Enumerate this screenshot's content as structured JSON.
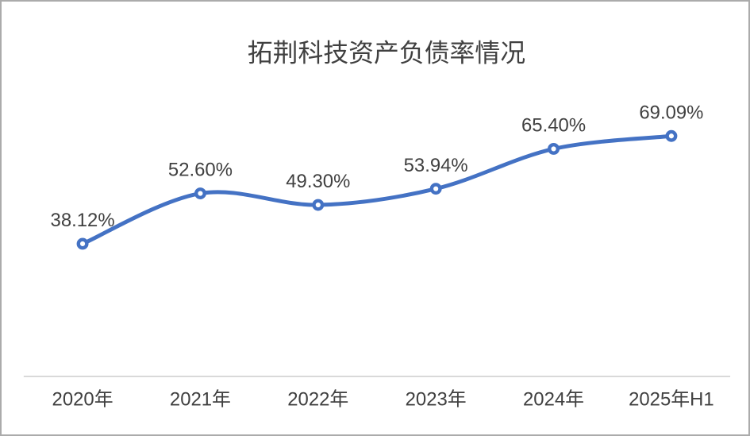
{
  "window": {
    "background": "#FFFFFF",
    "frame_border_color": "#ABABAB"
  },
  "chart_data": {
    "type": "line",
    "title": "拓荆科技资产负债率情况",
    "categories": [
      "2020年",
      "2021年",
      "2022年",
      "2023年",
      "2024年",
      "2025年H1"
    ],
    "values": [
      38.12,
      52.6,
      49.3,
      53.94,
      65.4,
      69.09
    ],
    "data_labels": [
      "38.12%",
      "52.60%",
      "49.30%",
      "53.94%",
      "65.40%",
      "69.09%"
    ],
    "xlabel": "",
    "ylabel": "",
    "ylim": [
      0,
      80
    ],
    "unit": "%",
    "y_axis_visible": false,
    "gridlines": false,
    "legend": "none",
    "smooth_line": true,
    "marker_style": "open-circle",
    "colors": {
      "line": "#4472C4",
      "marker_fill": "#FFFFFF",
      "title_text": "#404040",
      "label_text": "#404040",
      "axis_line": "#D9D9D9"
    }
  }
}
